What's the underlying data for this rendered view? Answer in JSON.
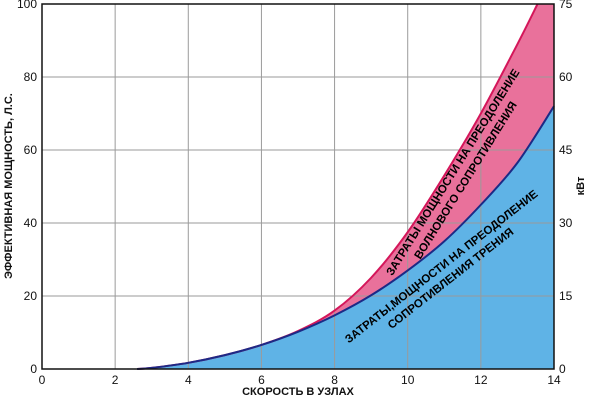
{
  "chart_data": {
    "type": "area",
    "x_label": "СКОРОСТЬ В УЗЛАХ",
    "y_label_left": "ЭФФЕКТИВНАЯ МОЩНОСТЬ, Л.С.",
    "y_label_right": "кВт",
    "x_range": [
      0,
      14
    ],
    "y_range_left": [
      0,
      100
    ],
    "y_range_right": [
      0,
      75
    ],
    "grid": true,
    "x_ticks": [
      "0",
      "2",
      "4",
      "6",
      "8",
      "10",
      "12",
      "14"
    ],
    "y_ticks_left": [
      "0",
      "20",
      "40",
      "60",
      "80",
      "100"
    ],
    "y_ticks_right": [
      "0",
      "15",
      "30",
      "45",
      "60",
      "75"
    ],
    "colors": {
      "friction_fill": "#5fb3e6",
      "friction_line": "#1c2a86",
      "wave_fill": "#e9719b",
      "wave_line": "#d4165a"
    },
    "series": [
      {
        "key": "friction",
        "x": [
          2.6,
          3,
          4,
          5,
          6,
          7,
          8,
          9,
          10,
          11,
          12,
          13,
          14
        ],
        "y": [
          0,
          0.3,
          1.7,
          3.8,
          6.6,
          10.2,
          14.7,
          20.2,
          27.0,
          35.0,
          45.0,
          56.5,
          72.0
        ]
      },
      {
        "key": "wave",
        "x": [
          2.6,
          3,
          4,
          5,
          6,
          7,
          8,
          9,
          10,
          11,
          12,
          13,
          13.55
        ],
        "y": [
          0,
          0.3,
          1.7,
          3.8,
          6.6,
          10.4,
          16.0,
          25.0,
          37.5,
          53.0,
          70.0,
          89.0,
          100.0
        ]
      }
    ],
    "annotations": {
      "wave_line1": "ЗАТРАТЫ МОЩНОСТИ НА ПРЕОДОЛЕНИЕ",
      "wave_line2": "ВОЛНОВОГО СОПРОТИВЛЕНИЯ",
      "friction_line1": "ЗАТРАТЫ,МОЩНОСТИ НА ПРЕОДОЛЕНИЕ",
      "friction_line2": "СОПРОТИВЛЕНИЯ ТРЕНИЯ"
    }
  }
}
